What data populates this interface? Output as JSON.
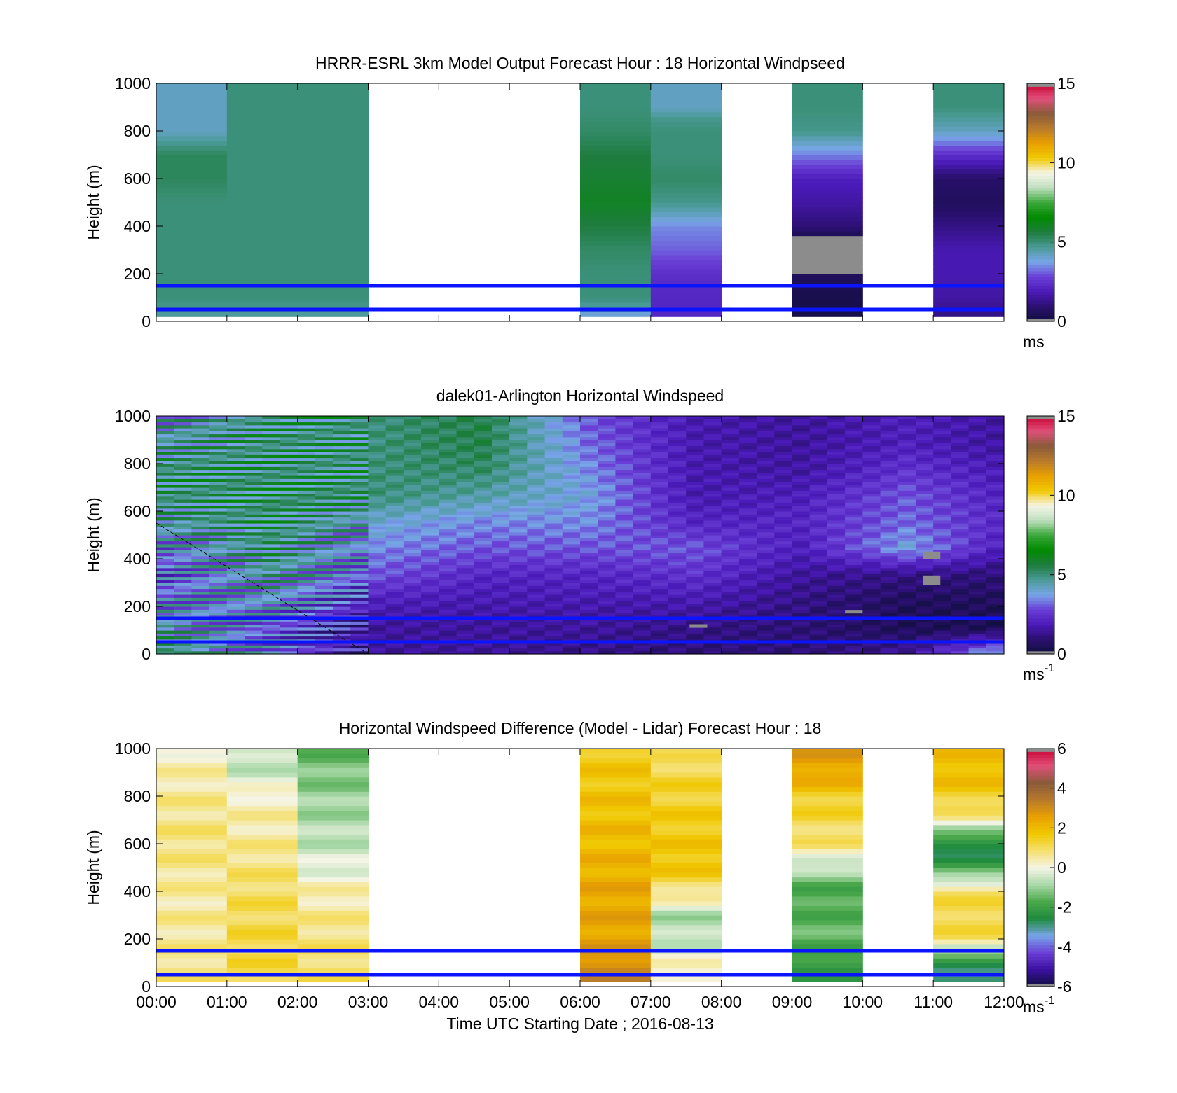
{
  "figure": {
    "background": "#ffffff",
    "reference_line_color": "#0a14ff",
    "missing_color": "#8c8c8c",
    "shared_xlabel": "Time UTC  Starting Date ; 2016-08-13",
    "x_ticks": [
      "00:00",
      "01:00",
      "02:00",
      "03:00",
      "04:00",
      "05:00",
      "06:00",
      "07:00",
      "08:00",
      "09:00",
      "10:00",
      "11:00",
      "12:00"
    ]
  },
  "colormaps": {
    "speed": [
      "#0f0f3c",
      "#2b1070",
      "#4a1ab8",
      "#6a3fd6",
      "#78a6e8",
      "#4a9a96",
      "#1e7d3e",
      "#008a00",
      "#3aa83a",
      "#bfe0bf",
      "#f5f5e6",
      "#f0c800",
      "#e8a000",
      "#b87a2c",
      "#8a5a3a",
      "#e0507a",
      "#c80030"
    ],
    "diff": [
      "#0f0f3c",
      "#3a10a0",
      "#6a3fd6",
      "#78a6e8",
      "#1e8a3e",
      "#4aa84a",
      "#a8d8a8",
      "#f5f5e6",
      "#f5e070",
      "#f0c800",
      "#e8a000",
      "#b87a2c",
      "#8a5a3a",
      "#e0507a",
      "#c80030"
    ]
  },
  "chart_data": [
    {
      "type": "heatmap",
      "name": "panel-model",
      "title": "HRRR-ESRL 3km Model Output   Forecast Hour : 18 Horizontal Windpseed",
      "xlabel": "",
      "ylabel": "Height (m)",
      "xlim": [
        "00:00",
        "12:00"
      ],
      "ylim": [
        0,
        1000
      ],
      "y_ticks": [
        "0",
        "200",
        "400",
        "600",
        "800",
        "1000"
      ],
      "colorbar": {
        "ticks": [
          "0",
          "5",
          "10",
          "15"
        ],
        "range": [
          0,
          15
        ],
        "unit": "ms",
        "unit_sup": "",
        "cmap": "speed"
      },
      "reference_lines_m": [
        50,
        150
      ],
      "missing_hours": [
        "03:00-04:00",
        "04:00-05:00",
        "05:00-06:00",
        "08:00-09:00",
        "10:00-11:00"
      ],
      "columns": [
        {
          "hour": "00:00",
          "profile": [
            [
              0,
              4.5
            ],
            [
              100,
              5
            ],
            [
              200,
              5
            ],
            [
              300,
              5
            ],
            [
              400,
              5
            ],
            [
              500,
              5
            ],
            [
              600,
              5.3
            ],
            [
              700,
              5.3
            ],
            [
              800,
              4.2
            ],
            [
              900,
              4.2
            ],
            [
              1000,
              4.2
            ]
          ]
        },
        {
          "hour": "01:00",
          "profile": [
            [
              0,
              4.5
            ],
            [
              100,
              5
            ],
            [
              300,
              5
            ],
            [
              500,
              5
            ],
            [
              700,
              5
            ],
            [
              900,
              5
            ],
            [
              1000,
              5
            ]
          ]
        },
        {
          "hour": "02:00",
          "profile": [
            [
              0,
              4.5
            ],
            [
              100,
              5
            ],
            [
              300,
              5
            ],
            [
              500,
              5
            ],
            [
              700,
              5
            ],
            [
              900,
              5
            ],
            [
              1000,
              5
            ]
          ]
        },
        {
          "hour": "06:00",
          "profile": [
            [
              0,
              3.2
            ],
            [
              50,
              4.5
            ],
            [
              100,
              5
            ],
            [
              200,
              5
            ],
            [
              300,
              5.2
            ],
            [
              400,
              5.6
            ],
            [
              500,
              6
            ],
            [
              600,
              5.8
            ],
            [
              700,
              5.6
            ],
            [
              800,
              5.2
            ],
            [
              900,
              5
            ],
            [
              1000,
              5
            ]
          ]
        },
        {
          "hour": "07:00",
          "profile": [
            [
              0,
              2.2
            ],
            [
              100,
              2.2
            ],
            [
              200,
              2.4
            ],
            [
              300,
              3.1
            ],
            [
              400,
              3.5
            ],
            [
              450,
              4.2
            ],
            [
              500,
              4.8
            ],
            [
              600,
              5.2
            ],
            [
              700,
              5
            ],
            [
              800,
              5
            ],
            [
              850,
              4.8
            ],
            [
              900,
              4.2
            ],
            [
              1000,
              4.2
            ]
          ]
        },
        {
          "hour": "08:00-missing",
          "profile": []
        },
        {
          "hour": "09:00",
          "profile": [
            [
              0,
              0.2
            ],
            [
              100,
              0.3
            ],
            [
              200,
              0.6
            ],
            [
              250,
              "nan"
            ],
            [
              300,
              "nan"
            ],
            [
              350,
              0.3
            ],
            [
              400,
              1
            ],
            [
              500,
              1.6
            ],
            [
              600,
              2
            ],
            [
              700,
              3.4
            ],
            [
              800,
              4.8
            ],
            [
              900,
              5
            ],
            [
              1000,
              5
            ]
          ]
        },
        {
          "hour": "11:00",
          "profile": [
            [
              0,
              1
            ],
            [
              100,
              1.6
            ],
            [
              200,
              1.8
            ],
            [
              300,
              1.8
            ],
            [
              400,
              1.2
            ],
            [
              500,
              0.6
            ],
            [
              600,
              0.8
            ],
            [
              700,
              2.4
            ],
            [
              800,
              4.2
            ],
            [
              900,
              5
            ],
            [
              1000,
              5
            ]
          ]
        }
      ]
    },
    {
      "type": "heatmap",
      "name": "panel-lidar",
      "title": "dalek01-Arlington  Horizontal Windspeed",
      "xlabel": "",
      "ylabel": "Height (m)",
      "xlim": [
        "00:00",
        "12:00"
      ],
      "ylim": [
        0,
        1000
      ],
      "y_ticks": [
        "0",
        "200",
        "400",
        "600",
        "800",
        "1000"
      ],
      "colorbar": {
        "ticks": [
          "0",
          "5",
          "10",
          "15"
        ],
        "range": [
          0,
          15
        ],
        "unit": "ms",
        "unit_sup": "-1",
        "cmap": "speed"
      },
      "reference_lines_m": [
        50,
        150
      ],
      "dashed_line": {
        "x": [
          0,
          3.0
        ],
        "y_m": [
          550,
          0
        ]
      },
      "description_series": [
        {
          "t": 0.0,
          "base": [
            5,
            4.5,
            3.5,
            3.0,
            3.5,
            4.5,
            5.0,
            5.0,
            4.5,
            4.0
          ]
        },
        {
          "t": 1.5,
          "base": [
            3.5,
            3.0,
            4.0,
            4.5,
            5.0,
            5.2,
            5.2,
            5.0,
            5.0,
            5.0
          ]
        },
        {
          "t": 3.0,
          "base": [
            1.5,
            1.5,
            2.0,
            3.0,
            3.5,
            4.0,
            5.0,
            5.0,
            5.0,
            5.0
          ]
        },
        {
          "t": 4.5,
          "base": [
            1.5,
            1.5,
            1.8,
            2.2,
            3.0,
            3.5,
            4.5,
            5.2,
            5.5,
            5.5
          ]
        },
        {
          "t": 6.0,
          "base": [
            1.2,
            1.5,
            1.8,
            2.2,
            3.0,
            3.5,
            3.8,
            3.5,
            3.2,
            3.0
          ]
        },
        {
          "t": 7.5,
          "base": [
            1.0,
            1.2,
            1.8,
            2.5,
            3.0,
            2.2,
            1.8,
            1.8,
            1.8,
            1.8
          ]
        },
        {
          "t": 9.0,
          "base": [
            1.0,
            1.0,
            1.2,
            1.5,
            2.0,
            2.2,
            2.0,
            1.6,
            1.5,
            1.5
          ]
        },
        {
          "t": 10.5,
          "base": [
            1.5,
            0.5,
            0.6,
            1.2,
            3.8,
            3.2,
            3.0,
            2.5,
            2.0,
            2.0
          ]
        },
        {
          "t": 12.0,
          "base": [
            4.5,
            0.4,
            0.6,
            1.0,
            1.8,
            2.2,
            2.0,
            1.8,
            1.5,
            1.5
          ]
        }
      ]
    },
    {
      "type": "heatmap",
      "name": "panel-diff",
      "title": "Horizontal Windspeed Difference (Model - Lidar) Forecast Hour : 18",
      "xlabel": "Time UTC  Starting Date ; 2016-08-13",
      "ylabel": "Height (m)",
      "xlim": [
        "00:00",
        "12:00"
      ],
      "ylim": [
        0,
        1000
      ],
      "y_ticks": [
        "0",
        "200",
        "400",
        "600",
        "800",
        "1000"
      ],
      "colorbar": {
        "ticks": [
          "-6",
          "-4",
          "-2",
          "0",
          "2",
          "4",
          "6"
        ],
        "range": [
          -6,
          6
        ],
        "unit": "ms",
        "unit_sup": "-1",
        "cmap": "diff"
      },
      "reference_lines_m": [
        50,
        150
      ],
      "missing_hours": [
        "03:00-04:00",
        "04:00-05:00",
        "05:00-06:00",
        "08:00-09:00",
        "10:00-11:00"
      ],
      "columns": [
        {
          "hour": "00:00",
          "profile": [
            [
              0,
              0.8
            ],
            [
              200,
              0.6
            ],
            [
              400,
              0.5
            ],
            [
              600,
              0.8
            ],
            [
              800,
              0.6
            ],
            [
              1000,
              0.2
            ]
          ]
        },
        {
          "hour": "01:00",
          "profile": [
            [
              0,
              1.2
            ],
            [
              200,
              1.2
            ],
            [
              400,
              1.0
            ],
            [
              600,
              0.6
            ],
            [
              800,
              0.3
            ],
            [
              900,
              -0.5
            ],
            [
              1000,
              -0.6
            ]
          ]
        },
        {
          "hour": "02:00",
          "profile": [
            [
              0,
              1.0
            ],
            [
              200,
              0.8
            ],
            [
              400,
              0.4
            ],
            [
              500,
              -0.2
            ],
            [
              600,
              -0.6
            ],
            [
              800,
              -1.0
            ],
            [
              1000,
              -1.5
            ]
          ]
        },
        {
          "hour": "06:00",
          "profile": [
            [
              0,
              3.2
            ],
            [
              100,
              3.0
            ],
            [
              200,
              2.5
            ],
            [
              400,
              2.4
            ],
            [
              600,
              2.0
            ],
            [
              800,
              1.8
            ],
            [
              1000,
              1.6
            ]
          ]
        },
        {
          "hour": "07:00",
          "profile": [
            [
              0,
              0.4
            ],
            [
              100,
              0.2
            ],
            [
              200,
              -0.6
            ],
            [
              300,
              -0.8
            ],
            [
              380,
              0.5
            ],
            [
              500,
              1.8
            ],
            [
              700,
              1.6
            ],
            [
              900,
              1.2
            ],
            [
              1000,
              0.8
            ]
          ]
        },
        {
          "hour": "09:00",
          "profile": [
            [
              0,
              -2.0
            ],
            [
              100,
              -2.2
            ],
            [
              200,
              -1.5
            ],
            [
              300,
              -1.6
            ],
            [
              400,
              -1.8
            ],
            [
              500,
              -0.6
            ],
            [
              600,
              0.8
            ],
            [
              800,
              1.5
            ],
            [
              900,
              2.5
            ],
            [
              1000,
              2.6
            ]
          ]
        },
        {
          "hour": "11:00",
          "profile": [
            [
              0,
              -2.6
            ],
            [
              100,
              -2.8
            ],
            [
              200,
              1.0
            ],
            [
              300,
              1.2
            ],
            [
              400,
              1.0
            ],
            [
              500,
              -2.0
            ],
            [
              600,
              -2.8
            ],
            [
              700,
              0.4
            ],
            [
              800,
              1.5
            ],
            [
              900,
              2.0
            ],
            [
              1000,
              1.8
            ]
          ]
        }
      ]
    }
  ]
}
